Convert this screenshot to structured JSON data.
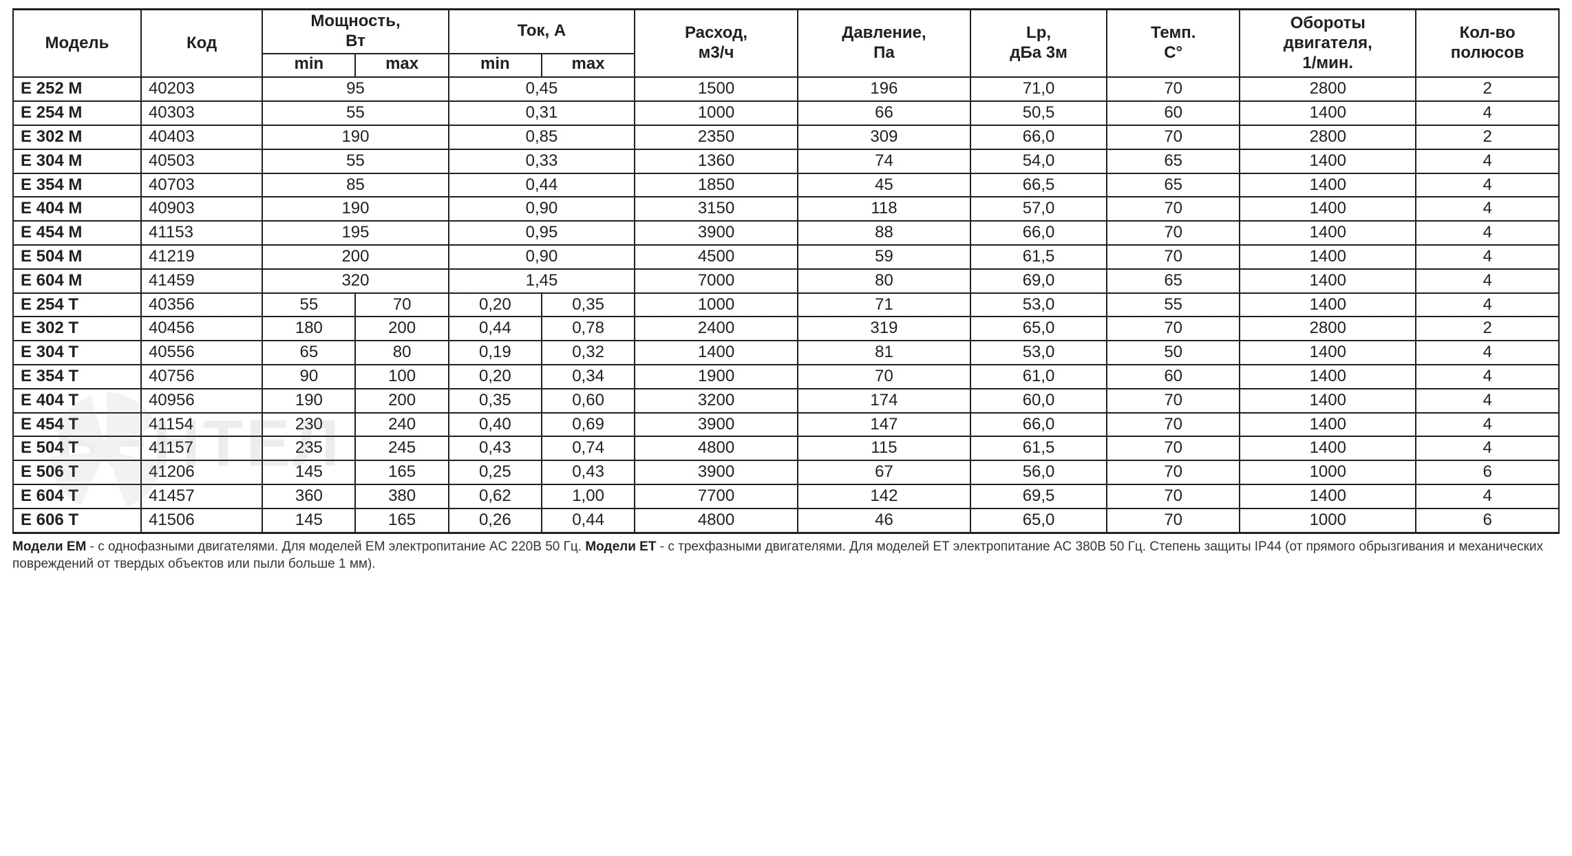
{
  "table": {
    "border_color": "#231f20",
    "text_color": "#231f20",
    "background_color": "#ffffff",
    "font_size_pt": 18,
    "header_font_weight": 700,
    "model_col_font_weight": 700,
    "col_widths_pct": [
      7.7,
      7.3,
      5.6,
      5.6,
      5.6,
      5.6,
      9.8,
      10.4,
      8.2,
      8.0,
      10.6,
      8.6
    ],
    "headers": {
      "model": "Модель",
      "code": "Код",
      "power": "Мощность,\nВт",
      "current": "Ток, А",
      "flow": "Расход,\nм3/ч",
      "pressure": "Давление,\nПа",
      "lp": "Lp,\nдБа 3м",
      "temp": "Темп.\nC°",
      "rpm": "Обороты\nдвигателя,\n1/мин.",
      "poles": "Кол-во\nполюсов",
      "min": "min",
      "max": "max"
    },
    "rows": [
      {
        "model": "E 252 M",
        "code": "40203",
        "p_min": "",
        "p_max": "",
        "p_span": "95",
        "i_min": "",
        "i_max": "",
        "i_span": "0,45",
        "flow": "1500",
        "press": "196",
        "lp": "71,0",
        "temp": "70",
        "rpm": "2800",
        "poles": "2"
      },
      {
        "model": "E 254 M",
        "code": "40303",
        "p_span": "55",
        "i_span": "0,31",
        "flow": "1000",
        "press": "66",
        "lp": "50,5",
        "temp": "60",
        "rpm": "1400",
        "poles": "4"
      },
      {
        "model": "E 302 M",
        "code": "40403",
        "p_span": "190",
        "i_span": "0,85",
        "flow": "2350",
        "press": "309",
        "lp": "66,0",
        "temp": "70",
        "rpm": "2800",
        "poles": "2"
      },
      {
        "model": "E 304 M",
        "code": "40503",
        "p_span": "55",
        "i_span": "0,33",
        "flow": "1360",
        "press": "74",
        "lp": "54,0",
        "temp": "65",
        "rpm": "1400",
        "poles": "4"
      },
      {
        "model": "E 354 M",
        "code": "40703",
        "p_span": "85",
        "i_span": "0,44",
        "flow": "1850",
        "press": "45",
        "lp": "66,5",
        "temp": "65",
        "rpm": "1400",
        "poles": "4"
      },
      {
        "model": "E 404 M",
        "code": "40903",
        "p_span": "190",
        "i_span": "0,90",
        "flow": "3150",
        "press": "118",
        "lp": "57,0",
        "temp": "70",
        "rpm": "1400",
        "poles": "4"
      },
      {
        "model": "E 454 M",
        "code": "41153",
        "p_span": "195",
        "i_span": "0,95",
        "flow": "3900",
        "press": "88",
        "lp": "66,0",
        "temp": "70",
        "rpm": "1400",
        "poles": "4"
      },
      {
        "model": "E 504 M",
        "code": "41219",
        "p_span": "200",
        "i_span": "0,90",
        "flow": "4500",
        "press": "59",
        "lp": "61,5",
        "temp": "70",
        "rpm": "1400",
        "poles": "4"
      },
      {
        "model": "E 604 M",
        "code": "41459",
        "p_span": "320",
        "i_span": "1,45",
        "flow": "7000",
        "press": "80",
        "lp": "69,0",
        "temp": "65",
        "rpm": "1400",
        "poles": "4"
      },
      {
        "model": "E 254 T",
        "code": "40356",
        "p_min": "55",
        "p_max": "70",
        "i_min": "0,20",
        "i_max": "0,35",
        "flow": "1000",
        "press": "71",
        "lp": "53,0",
        "temp": "55",
        "rpm": "1400",
        "poles": "4"
      },
      {
        "model": "E 302 T",
        "code": "40456",
        "p_min": "180",
        "p_max": "200",
        "i_min": "0,44",
        "i_max": "0,78",
        "flow": "2400",
        "press": "319",
        "lp": "65,0",
        "temp": "70",
        "rpm": "2800",
        "poles": "2"
      },
      {
        "model": "E 304 T",
        "code": "40556",
        "p_min": "65",
        "p_max": "80",
        "i_min": "0,19",
        "i_max": "0,32",
        "flow": "1400",
        "press": "81",
        "lp": "53,0",
        "temp": "50",
        "rpm": "1400",
        "poles": "4"
      },
      {
        "model": "E 354 T",
        "code": "40756",
        "p_min": "90",
        "p_max": "100",
        "i_min": "0,20",
        "i_max": "0,34",
        "flow": "1900",
        "press": "70",
        "lp": "61,0",
        "temp": "60",
        "rpm": "1400",
        "poles": "4"
      },
      {
        "model": "E 404 T",
        "code": "40956",
        "p_min": "190",
        "p_max": "200",
        "i_min": "0,35",
        "i_max": "0,60",
        "flow": "3200",
        "press": "174",
        "lp": "60,0",
        "temp": "70",
        "rpm": "1400",
        "poles": "4"
      },
      {
        "model": "E 454 T",
        "code": "41154",
        "p_min": "230",
        "p_max": "240",
        "i_min": "0,40",
        "i_max": "0,69",
        "flow": "3900",
        "press": "147",
        "lp": "66,0",
        "temp": "70",
        "rpm": "1400",
        "poles": "4"
      },
      {
        "model": "E 504 T",
        "code": "41157",
        "p_min": "235",
        "p_max": "245",
        "i_min": "0,43",
        "i_max": "0,74",
        "flow": "4800",
        "press": "115",
        "lp": "61,5",
        "temp": "70",
        "rpm": "1400",
        "poles": "4"
      },
      {
        "model": "E 506 T",
        "code": "41206",
        "p_min": "145",
        "p_max": "165",
        "i_min": "0,25",
        "i_max": "0,43",
        "flow": "3900",
        "press": "67",
        "lp": "56,0",
        "temp": "70",
        "rpm": "1000",
        "poles": "6"
      },
      {
        "model": "E 604 T",
        "code": "41457",
        "p_min": "360",
        "p_max": "380",
        "i_min": "0,62",
        "i_max": "1,00",
        "flow": "7700",
        "press": "142",
        "lp": "69,5",
        "temp": "70",
        "rpm": "1400",
        "poles": "4"
      },
      {
        "model": "E 606 T",
        "code": "41506",
        "p_min": "145",
        "p_max": "165",
        "i_min": "0,26",
        "i_max": "0,44",
        "flow": "4800",
        "press": "46",
        "lp": "65,0",
        "temp": "70",
        "rpm": "1000",
        "poles": "6"
      }
    ]
  },
  "footnote": {
    "em_label": "Модели EM",
    "em_text": " - с однофазными двигателями. Для моделей EM электропитание AC 220В 50 Гц. ",
    "et_label": "Модели ET",
    "et_text": " - с трехфазными двигателями. Для моделей ET электропитание AC 380В 50 Гц. Степень защиты IP44 (от прямого обрызгивания и механических повреждений от твердых объектов или пыли больше 1 мм).",
    "font_size_pt": 14,
    "text_color": "#353535"
  },
  "watermark": {
    "text": "ВЕНТЕЛ",
    "opacity": 0.1,
    "color": "#515c6b",
    "fan_blade_color": "#7a8799"
  }
}
